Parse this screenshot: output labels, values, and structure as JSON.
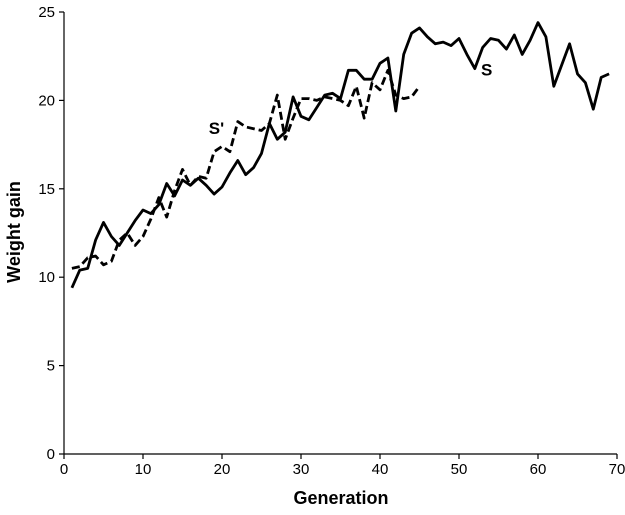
{
  "chart_data": {
    "type": "line",
    "title": "",
    "xlabel": "Generation",
    "ylabel": "Weight gain",
    "xlim": [
      0,
      70
    ],
    "ylim": [
      0,
      25
    ],
    "xticks": [
      0,
      10,
      20,
      30,
      40,
      50,
      60,
      70
    ],
    "yticks": [
      0,
      5,
      10,
      15,
      20,
      25
    ],
    "grid": false,
    "series": [
      {
        "name": "S",
        "style": "solid",
        "color": "#000000",
        "x": [
          1,
          2,
          3,
          4,
          5,
          6,
          7,
          8,
          9,
          10,
          11,
          12,
          13,
          14,
          15,
          16,
          17,
          18,
          19,
          20,
          21,
          22,
          23,
          24,
          25,
          26,
          27,
          28,
          29,
          30,
          31,
          32,
          33,
          34,
          35,
          36,
          37,
          38,
          39,
          40,
          41,
          42,
          43,
          44,
          45,
          46,
          47,
          48,
          49,
          50,
          51,
          52,
          53,
          54,
          55,
          56,
          57,
          58,
          59,
          60,
          61,
          62,
          63,
          64,
          65,
          66,
          67,
          68,
          69
        ],
        "values": [
          9.4,
          10.4,
          10.5,
          12.1,
          13.1,
          12.3,
          11.8,
          12.5,
          13.2,
          13.8,
          13.6,
          14.1,
          15.3,
          14.6,
          15.5,
          15.2,
          15.6,
          15.2,
          14.7,
          15.1,
          15.9,
          16.6,
          15.8,
          16.2,
          17.0,
          18.7,
          17.8,
          18.2,
          20.2,
          19.1,
          18.9,
          19.6,
          20.3,
          20.4,
          20.1,
          21.7,
          21.7,
          21.2,
          21.2,
          22.1,
          22.4,
          19.4,
          22.6,
          23.8,
          24.1,
          23.6,
          23.2,
          23.3,
          23.1,
          23.5,
          22.6,
          21.8,
          23.0,
          23.5,
          23.4,
          22.9,
          23.7,
          22.6,
          23.4,
          24.4,
          23.6,
          20.8,
          22.0,
          23.2,
          21.5,
          21.0,
          19.5,
          21.3,
          21.5
        ]
      },
      {
        "name": "S'",
        "style": "dashed",
        "color": "#000000",
        "x": [
          1,
          2,
          3,
          4,
          5,
          6,
          7,
          8,
          9,
          10,
          11,
          12,
          13,
          14,
          15,
          16,
          17,
          18,
          19,
          20,
          21,
          22,
          23,
          24,
          25,
          26,
          27,
          28,
          29,
          30,
          31,
          32,
          33,
          34,
          35,
          36,
          37,
          38,
          39,
          40,
          41,
          42,
          43,
          44,
          45
        ],
        "values": [
          10.5,
          10.6,
          11.1,
          11.2,
          10.7,
          10.9,
          12.1,
          12.5,
          11.8,
          12.3,
          13.3,
          14.5,
          13.4,
          14.9,
          16.1,
          15.2,
          15.7,
          15.6,
          17.1,
          17.4,
          17.1,
          18.8,
          18.5,
          18.4,
          18.3,
          18.7,
          20.3,
          17.8,
          19.0,
          20.1,
          20.1,
          20.0,
          20.2,
          20.1,
          20.0,
          19.7,
          20.8,
          19.0,
          21.0,
          20.6,
          21.7,
          20.3,
          20.1,
          20.2,
          20.8
        ]
      }
    ],
    "annotations": [
      {
        "text": "S",
        "x": 53.5,
        "y": 21.4
      },
      {
        "text": "S'",
        "x": 19.3,
        "y": 18.1
      }
    ]
  }
}
